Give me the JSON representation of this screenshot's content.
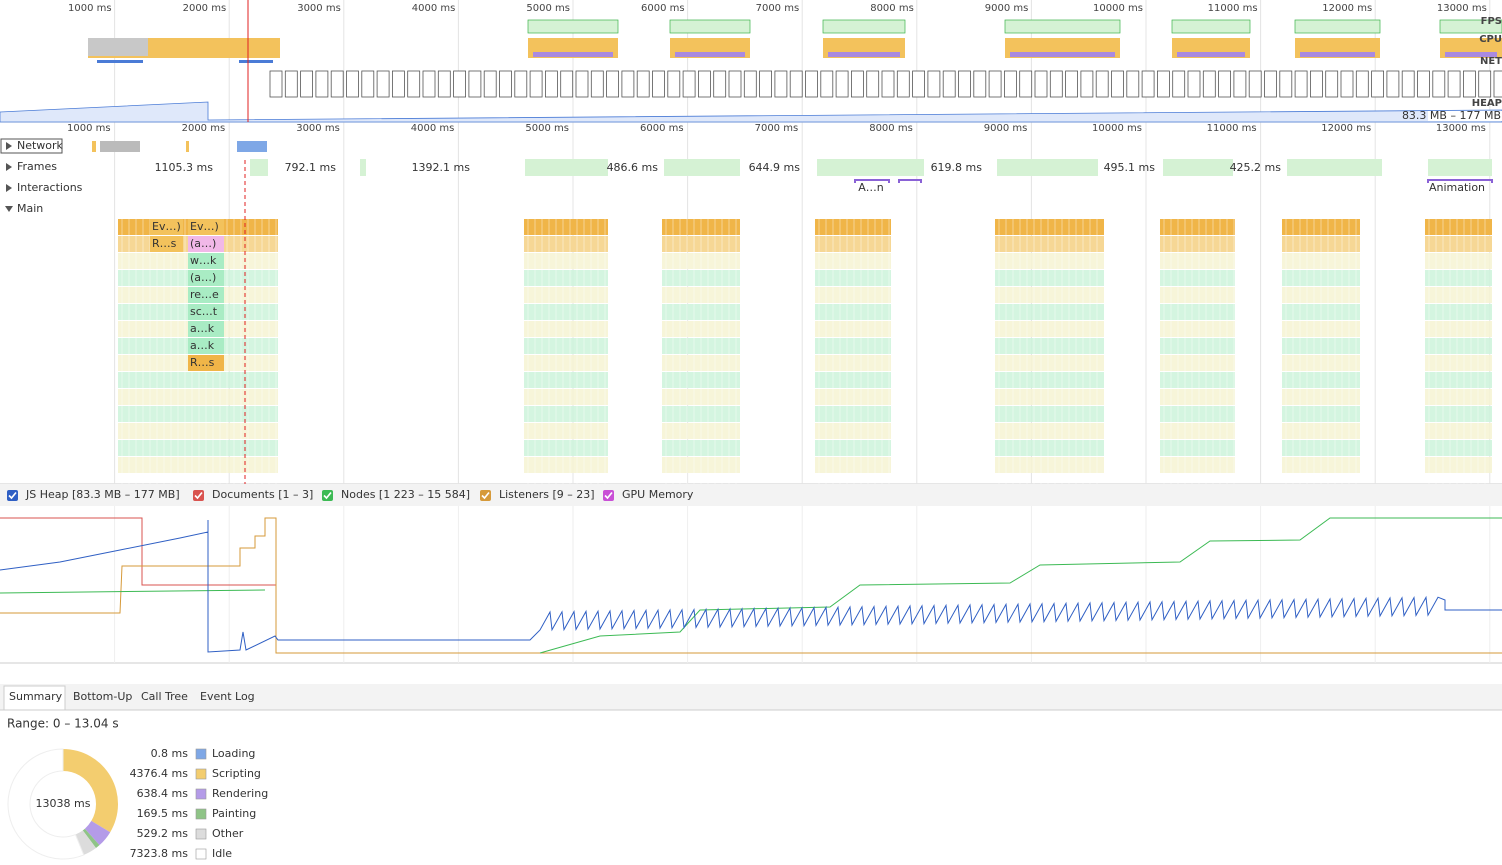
{
  "overview": {
    "ticks": [
      {
        "value": 1000,
        "label": "1000 ms"
      },
      {
        "value": 2000,
        "label": "2000 ms"
      },
      {
        "value": 3000,
        "label": "3000 ms"
      },
      {
        "value": 4000,
        "label": "4000 ms"
      },
      {
        "value": 5000,
        "label": "5000 ms"
      },
      {
        "value": 6000,
        "label": "6000 ms"
      },
      {
        "value": 7000,
        "label": "7000 ms"
      },
      {
        "value": 8000,
        "label": "8000 ms"
      },
      {
        "value": 9000,
        "label": "9000 ms"
      },
      {
        "value": 10000,
        "label": "10000 ms"
      },
      {
        "value": 11000,
        "label": "11000 ms"
      },
      {
        "value": 12000,
        "label": "12000 ms"
      },
      {
        "value": 13000,
        "label": "13000 ms"
      }
    ],
    "tracks": [
      "FPS",
      "CPU",
      "NET",
      "HEAP"
    ],
    "heap_range": "83.3 MB – 177 MB"
  },
  "tracks": {
    "network": "Network",
    "frames": "Frames",
    "interactions": "Interactions",
    "main": "Main"
  },
  "frames": [
    "1105.3 ms",
    "792.1 ms",
    "1392.1 ms",
    "486.6 ms",
    "644.9 ms",
    "619.8 ms",
    "495.1 ms",
    "425.2 ms"
  ],
  "interactions": [
    "A…n",
    "Animation"
  ],
  "flame_labels": [
    "Ev…)",
    "Ev…)",
    "R…s",
    "(a…)",
    "w…k",
    "(a…)",
    "re…e",
    "sc…t",
    "a…k",
    "a…k",
    "R…s"
  ],
  "memory": {
    "legend": [
      {
        "name": "JS Heap [83.3 MB – 177 MB]",
        "color": "#2f5fc4"
      },
      {
        "name": "Documents [1 – 3]",
        "color": "#d9534f"
      },
      {
        "name": "Nodes [1 223 – 15 584]",
        "color": "#3cba54"
      },
      {
        "name": "Listeners [9 – 23]",
        "color": "#d69a3a"
      },
      {
        "name": "GPU Memory",
        "color": "#c94fd6"
      }
    ]
  },
  "tabs": [
    "Summary",
    "Bottom-Up",
    "Call Tree",
    "Event Log"
  ],
  "summary": {
    "range": "Range: 0 – 13.04 s",
    "total": "13038 ms",
    "categories": [
      "Loading",
      "Scripting",
      "Rendering",
      "Painting",
      "Other",
      "Idle"
    ],
    "values": [
      0.8,
      4376.4,
      638.4,
      169.5,
      529.2,
      7323.8
    ],
    "value_labels": [
      "0.8 ms",
      "4376.4 ms",
      "638.4 ms",
      "169.5 ms",
      "529.2 ms",
      "7323.8 ms"
    ],
    "colors": [
      "#7ea7e6",
      "#f3cd6f",
      "#b49be8",
      "#8fc487",
      "#dcdcdc",
      "#ffffff"
    ]
  }
}
